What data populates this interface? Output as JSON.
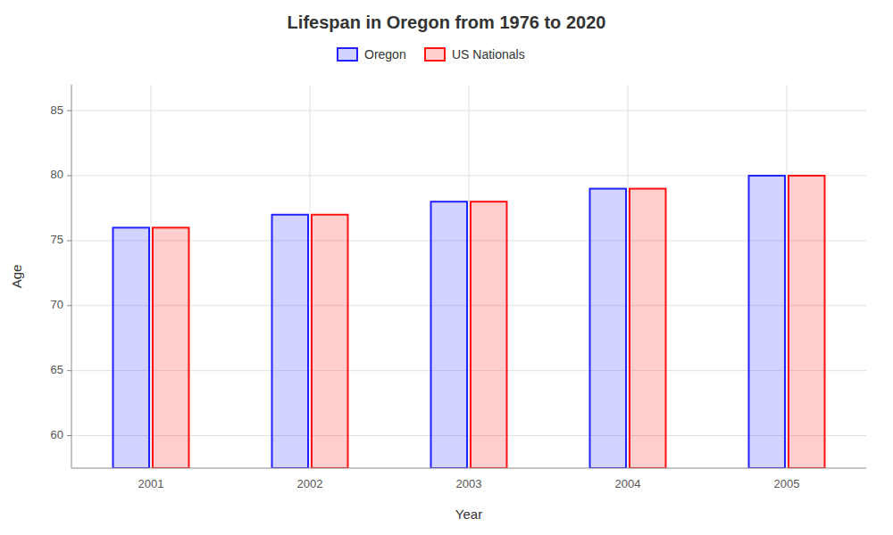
{
  "chart_data": {
    "type": "bar",
    "title": "Lifespan in Oregon from 1976 to 2020",
    "x_label": "Year",
    "y_label": "Age",
    "categories": [
      "2001",
      "2002",
      "2003",
      "2004",
      "2005"
    ],
    "series": [
      {
        "name": "Oregon",
        "color": "#2222ff",
        "values": [
          76,
          77,
          78,
          79,
          80
        ]
      },
      {
        "name": "US Nationals",
        "color": "#ff1111",
        "values": [
          76,
          77,
          78,
          79,
          80
        ]
      }
    ],
    "ylim": [
      57.5,
      87
    ],
    "yticks": [
      60,
      65,
      70,
      75,
      80,
      85
    ],
    "grid": true,
    "legend": "top"
  }
}
